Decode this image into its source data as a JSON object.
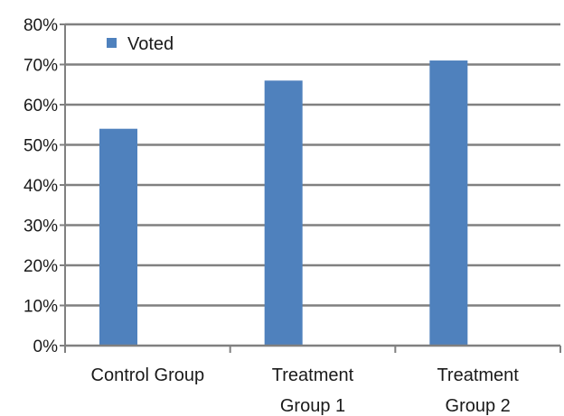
{
  "chart_data": {
    "type": "bar",
    "categories": [
      [
        "Control Group"
      ],
      [
        "Treatment",
        "Group 1"
      ],
      [
        "Treatment",
        "Group 2"
      ]
    ],
    "series": [
      {
        "name": "Voted",
        "values": [
          0.54,
          0.66,
          0.71
        ],
        "color": "#4f81bd"
      }
    ],
    "title": "",
    "xlabel": "",
    "ylabel": "",
    "ylim": [
      0,
      0.8
    ],
    "y_ticks": [
      0,
      0.1,
      0.2,
      0.3,
      0.4,
      0.5,
      0.6,
      0.7,
      0.8
    ],
    "y_tick_labels": [
      "0%",
      "10%",
      "20%",
      "30%",
      "40%",
      "50%",
      "60%",
      "70%",
      "80%"
    ],
    "grid": true,
    "legend_position": "top-left",
    "gridline_color": "#808080"
  }
}
